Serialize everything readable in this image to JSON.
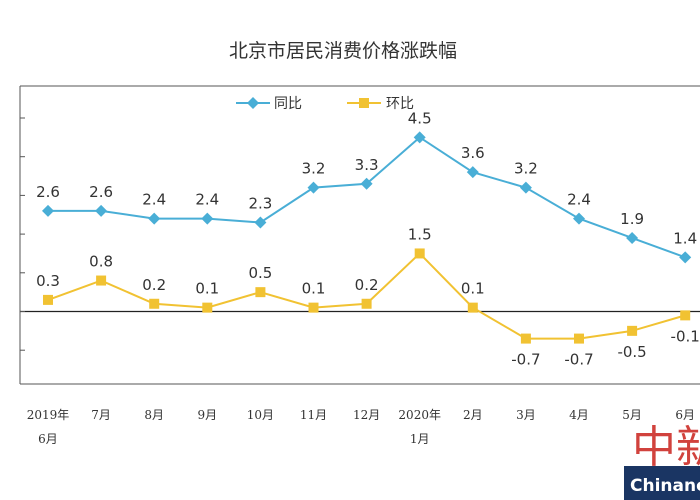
{
  "chart_data": {
    "type": "line",
    "title": "北京市居民消费价格涨跌幅",
    "categories": [
      "2019年 6月",
      "7月",
      "8月",
      "9月",
      "10月",
      "11月",
      "12月",
      "2020年 1月",
      "2月",
      "3月",
      "4月",
      "5月",
      "6月"
    ],
    "series": [
      {
        "name": "同比",
        "color": "#49aed6",
        "marker": "diamond",
        "values": [
          2.6,
          2.6,
          2.4,
          2.4,
          2.3,
          3.2,
          3.3,
          4.5,
          3.6,
          3.2,
          2.4,
          1.9,
          1.4
        ],
        "labels": [
          "2.6",
          "2.6",
          "2.4",
          "2.4",
          "2.3",
          "3.2",
          "3.3",
          "4.5",
          "3.6",
          "3.2",
          "2.4",
          "1.9",
          "1.4"
        ]
      },
      {
        "name": "环比",
        "color": "#f1c232",
        "marker": "square",
        "values": [
          0.3,
          0.8,
          0.2,
          0.1,
          0.5,
          0.1,
          0.2,
          1.5,
          0.1,
          -0.7,
          -0.7,
          -0.5,
          -0.1
        ],
        "labels": [
          "0.3",
          "0.8",
          "0.2",
          "0.1",
          "0.5",
          "0.1",
          "0.2",
          "1.5",
          "0.1",
          "-0.7",
          "-0.7",
          "-0.5",
          "-0.1"
        ]
      }
    ],
    "ylim": [
      -1.5,
      6.0
    ],
    "grid": false,
    "legend_position": "top-left"
  },
  "watermark": {
    "zh": "中新",
    "en": "Chinane"
  }
}
